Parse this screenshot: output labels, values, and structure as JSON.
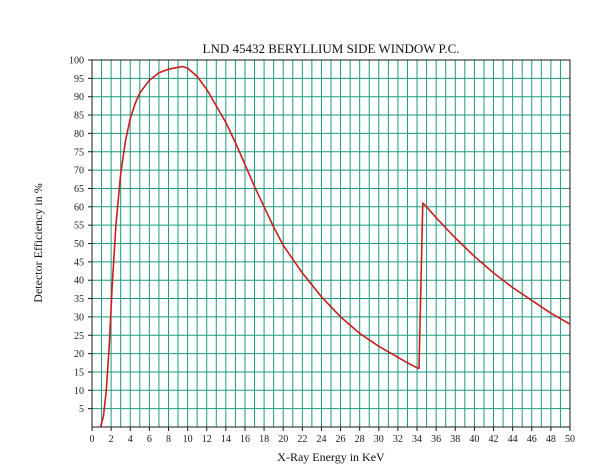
{
  "chart_data": {
    "type": "line",
    "title": "LND 45432 BERYLLIUM SIDE WINDOW P.C.",
    "xlabel": "X-Ray Energy in KeV",
    "ylabel": "Detector Efficiency in %",
    "xlim": [
      0,
      50
    ],
    "ylim": [
      0,
      100
    ],
    "xticks": [
      0,
      2,
      4,
      6,
      8,
      10,
      12,
      14,
      16,
      18,
      20,
      22,
      24,
      26,
      28,
      30,
      32,
      34,
      36,
      38,
      40,
      42,
      44,
      46,
      48,
      50
    ],
    "yticks": [
      5,
      10,
      15,
      20,
      25,
      30,
      35,
      40,
      45,
      50,
      55,
      60,
      65,
      70,
      75,
      80,
      85,
      90,
      95,
      100
    ],
    "grid": true,
    "grid_minor_x": 1,
    "line_color": "#c81e1e",
    "grid_color": "#1a9a80",
    "series": [
      {
        "values_x": [
          0.9,
          1.2,
          1.5,
          1.8,
          2.1,
          2.5,
          3,
          3.5,
          4,
          4.5,
          5,
          6,
          7,
          8,
          9,
          9.5,
          10,
          11,
          12,
          13,
          14,
          15,
          16,
          17,
          18,
          19,
          20,
          22,
          24,
          26,
          28,
          30,
          32,
          33,
          34.1,
          34.2,
          34.6,
          35,
          36,
          38,
          40,
          42,
          44,
          46,
          48,
          50
        ],
        "values_y": [
          0,
          3,
          10,
          22,
          38,
          55,
          69,
          78,
          84,
          88,
          91,
          94.5,
          96.5,
          97.5,
          98,
          98.2,
          97.8,
          95.5,
          92,
          87.5,
          83,
          77.5,
          71.5,
          65.5,
          60,
          54.5,
          49.5,
          42,
          35.5,
          30,
          25.5,
          22,
          19,
          17.5,
          16,
          16,
          61,
          60,
          57,
          51.5,
          46.5,
          42,
          38,
          34.5,
          31,
          28
        ]
      }
    ]
  }
}
